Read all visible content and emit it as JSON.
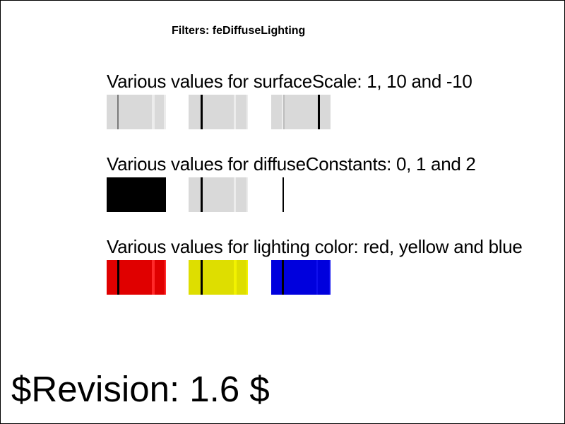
{
  "title": "Filters: feDiffuseLighting",
  "rows": [
    {
      "label": "Various values for surfaceScale: 1, 10 and -10",
      "swatches": [
        {
          "base": "#d9d9d9",
          "lines": [
            {
              "color": "#7a7a7a"
            },
            {
              "color": "#ececec"
            },
            {
              "color": "#ececec"
            }
          ]
        },
        {
          "base": "#d9d9d9",
          "lines": [
            {
              "color": "#000000"
            },
            {
              "color": "#ececec"
            },
            {
              "color": "#ececec"
            }
          ]
        },
        {
          "base": "#d9d9d9",
          "lines": [
            {
              "color": "#ececec"
            },
            {
              "color": "#bdbdbd"
            },
            {
              "color": "#000000"
            }
          ]
        }
      ]
    },
    {
      "label": "Various values for diffuseConstants: 0, 1 and 2",
      "swatches": [
        {
          "base": "#000000",
          "lines": []
        },
        {
          "base": "#d9d9d9",
          "lines": [
            {
              "color": "#000000"
            },
            {
              "color": "#ececec"
            },
            {
              "color": "#ececec"
            }
          ]
        },
        {
          "base": "#ffffff",
          "lines": [
            {
              "color": "#000000"
            }
          ]
        }
      ]
    },
    {
      "label": "Various values for lighting color: red, yellow and blue",
      "swatches": [
        {
          "base": "#e00000",
          "lines": [
            {
              "color": "#000000"
            },
            {
              "color": "#ff2a2a"
            },
            {
              "color": "#ff2a2a"
            }
          ]
        },
        {
          "base": "#dede00",
          "lines": [
            {
              "color": "#000000"
            },
            {
              "color": "#f2f200"
            },
            {
              "color": "#f2f200"
            }
          ]
        },
        {
          "base": "#0000dd",
          "lines": [
            {
              "color": "#000000"
            },
            {
              "color": "#1010ee"
            },
            {
              "color": "#1010ee"
            }
          ]
        }
      ]
    }
  ],
  "revision": "$Revision: 1.6 $"
}
